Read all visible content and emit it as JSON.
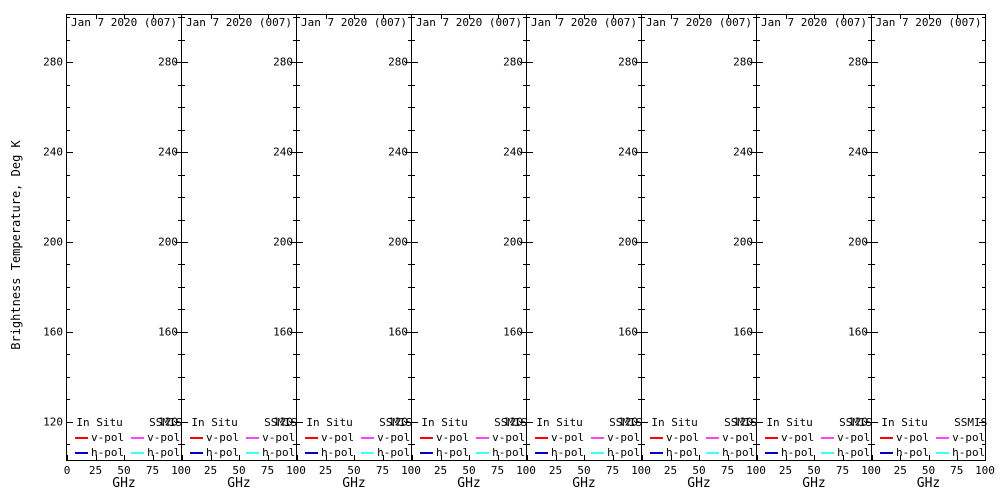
{
  "figure": {
    "bg": "#ffffff",
    "fg": "#000000",
    "y_axis_title": "Brightness Temperature, Deg K",
    "x_axis_title": "GHz",
    "panel_title": "Jan 7 2020 (007)",
    "num_panels": 8,
    "y_ticks": [
      120,
      160,
      200,
      240,
      280
    ],
    "y_minor_step": 10,
    "y_range": [
      103,
      301
    ],
    "x_ticks": [
      0,
      25,
      50,
      75,
      100
    ],
    "x_top_ticks": [
      25,
      50,
      75
    ],
    "x_range": [
      0,
      100
    ],
    "legend": {
      "columns": [
        {
          "header": "In Situ",
          "entries": [
            {
              "label": "v-pol",
              "color": "#ff0000"
            },
            {
              "label": "h-pol",
              "color": "#0000cc"
            }
          ]
        },
        {
          "header": "SSMIS",
          "entries": [
            {
              "label": "v-pol",
              "color": "#ff44ff"
            },
            {
              "label": "h-pol",
              "color": "#3cffff"
            }
          ]
        }
      ]
    }
  },
  "chart_data": {
    "type": "line",
    "layout": "8 identical side-by-side panels, shared rotated y-axis title at left, legend inside bottom of every panel, no gridlines, empty plot areas (no data curves drawn)",
    "panel_title": "Jan 7 2020 (007)",
    "xlabel": "GHz",
    "ylabel": "Brightness Temperature, Deg K",
    "xlim": [
      0,
      100
    ],
    "ylim": [
      103,
      301
    ],
    "x_ticks": [
      0,
      25,
      50,
      75,
      100
    ],
    "y_ticks": [
      120,
      160,
      200,
      240,
      280
    ],
    "y_minor_tick_step": 10,
    "grid": false,
    "legend_position": "bottom inside each panel, two columns: In Situ, SSMIS",
    "series": [
      {
        "name": "In Situ v-pol",
        "color": "#ff0000",
        "x": [],
        "y": []
      },
      {
        "name": "In Situ h-pol",
        "color": "#0000cc",
        "x": [],
        "y": []
      },
      {
        "name": "SSMIS v-pol",
        "color": "#ff44ff",
        "x": [],
        "y": []
      },
      {
        "name": "SSMIS h-pol",
        "color": "#3cffff",
        "x": [],
        "y": []
      }
    ]
  }
}
